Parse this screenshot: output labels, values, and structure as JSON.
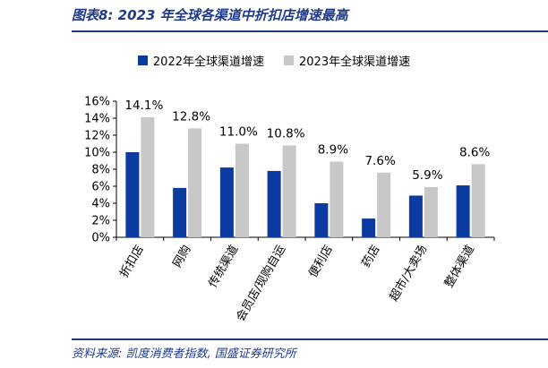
{
  "header": {
    "title": "图表8:  2023 年全球各渠道中折扣店增速最高"
  },
  "footer": {
    "source": "资料来源:  凯度消费者指数, 国盛证券研究所"
  },
  "colors": {
    "series_2022": "#0b3aa0",
    "series_2023": "#c8c8c8",
    "accent": "#1f3a8a"
  },
  "chart_data": {
    "type": "bar",
    "title": "",
    "xlabel": "",
    "ylabel": "",
    "categories": [
      "折扣店",
      "网购",
      "传统渠道",
      "会员店/现购自运",
      "便利店",
      "药店",
      "超市/大卖场",
      "整体渠道"
    ],
    "series": [
      {
        "name": "2022年全球渠道增速",
        "values": [
          10.0,
          5.8,
          8.2,
          7.8,
          4.0,
          2.2,
          4.9,
          6.1
        ]
      },
      {
        "name": "2023年全球渠道增速",
        "values": [
          14.1,
          12.8,
          11.0,
          10.8,
          8.9,
          7.6,
          5.9,
          8.6
        ]
      }
    ],
    "data_labels": [
      "14.1%",
      "12.8%",
      "11.0%",
      "10.8%",
      "8.9%",
      "7.6%",
      "5.9%",
      "8.6%"
    ],
    "y_ticks": [
      "0%",
      "2%",
      "4%",
      "6%",
      "8%",
      "10%",
      "12%",
      "14%",
      "16%"
    ],
    "ylim": [
      0,
      16
    ],
    "legend_position": "top",
    "grid": false
  }
}
